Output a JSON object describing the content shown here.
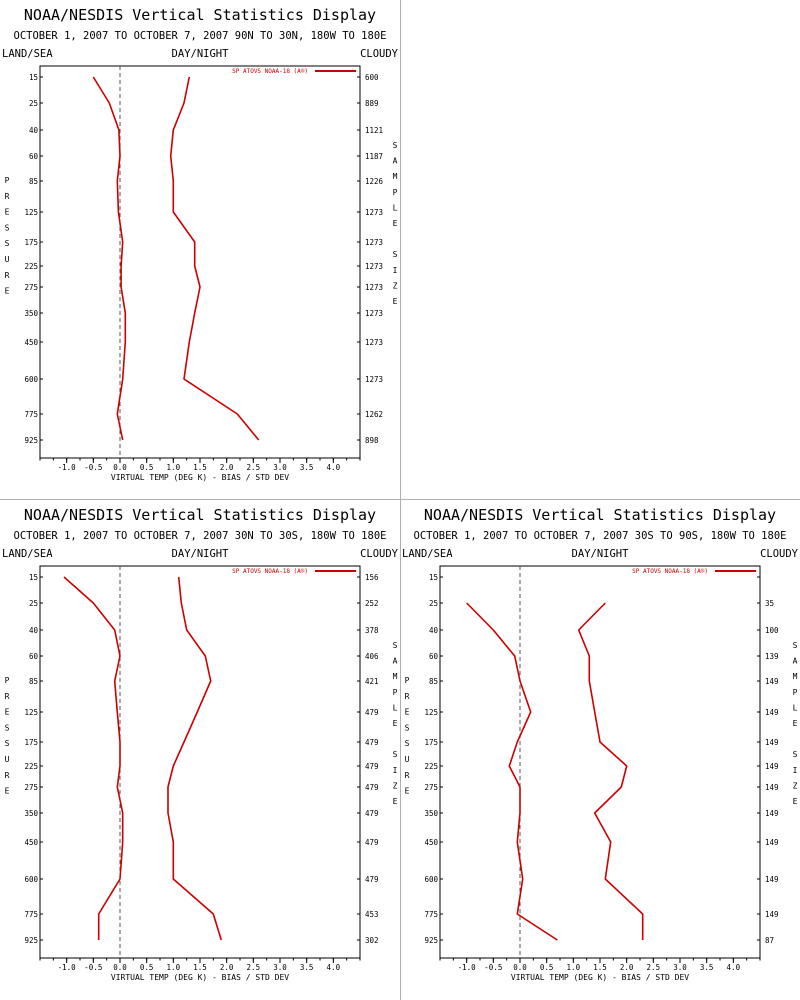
{
  "chart_data": [
    {
      "type": "line",
      "title": "NOAA/NESDIS Vertical Statistics Display",
      "subtitle": "OCTOBER 1, 2007 TO OCTOBER 7, 2007 90N TO 30N, 180W TO 180E",
      "header_left": "LAND/SEA",
      "header_center": "DAY/NIGHT",
      "header_right": "CLOUDY",
      "legend": "SP ATOVS NOAA-18 (A®)",
      "xlabel": "VIRTUAL TEMP (DEG K) - BIAS / STD DEV",
      "ylabel": "PRESSURE",
      "y2label": "SAMPLE SIZE",
      "xlim": [
        -1.5,
        4.5
      ],
      "x_ticks": [
        -1.0,
        -0.5,
        0.0,
        0.5,
        1.0,
        1.5,
        2.0,
        2.5,
        3.0,
        3.5,
        4.0
      ],
      "x_tick_labels": [
        "-1.0",
        "-0.5",
        "0.0",
        "0.5",
        "1.0",
        "1.5",
        "2.0",
        "2.5",
        "3.0",
        "3.5",
        "4.0"
      ],
      "pressure_levels": [
        "15",
        "25",
        "40",
        "60",
        "85",
        "125",
        "175",
        "225",
        "275",
        "350",
        "450",
        "600",
        "775",
        "925"
      ],
      "sample_sizes": [
        "600",
        "889",
        "1121",
        "1187",
        "1226",
        "1273",
        "1273",
        "1273",
        "1273",
        "1273",
        "1273",
        "1273",
        "1262",
        "898"
      ],
      "series": [
        {
          "role": "bias",
          "values": [
            -0.5,
            -0.2,
            -0.02,
            0.0,
            -0.05,
            -0.03,
            0.05,
            0.02,
            0.02,
            0.1,
            0.1,
            0.05,
            -0.05,
            0.05
          ]
        },
        {
          "role": "std_dev",
          "values": [
            1.3,
            1.2,
            1.0,
            0.95,
            1.0,
            1.0,
            1.4,
            1.4,
            1.5,
            1.4,
            1.3,
            1.2,
            2.2,
            2.6
          ]
        }
      ]
    },
    {
      "type": "line",
      "title": "NOAA/NESDIS Vertical Statistics Display",
      "subtitle": "OCTOBER 1, 2007 TO OCTOBER 7, 2007 30N TO 30S, 180W TO 180E",
      "header_left": "LAND/SEA",
      "header_center": "DAY/NIGHT",
      "header_right": "CLOUDY",
      "legend": "SP ATOVS NOAA-18 (A®)",
      "xlabel": "VIRTUAL TEMP (DEG K) - BIAS / STD DEV",
      "ylabel": "PRESSURE",
      "y2label": "SAMPLE SIZE",
      "xlim": [
        -1.5,
        4.5
      ],
      "x_ticks": [
        -1.0,
        -0.5,
        0.0,
        0.5,
        1.0,
        1.5,
        2.0,
        2.5,
        3.0,
        3.5,
        4.0
      ],
      "x_tick_labels": [
        "-1.0",
        "-0.5",
        "0.0",
        "0.5",
        "1.0",
        "1.5",
        "2.0",
        "2.5",
        "3.0",
        "3.5",
        "4.0"
      ],
      "pressure_levels": [
        "15",
        "25",
        "40",
        "60",
        "85",
        "125",
        "175",
        "225",
        "275",
        "350",
        "450",
        "600",
        "775",
        "925"
      ],
      "sample_sizes": [
        "156",
        "252",
        "378",
        "406",
        "421",
        "479",
        "479",
        "479",
        "479",
        "479",
        "479",
        "479",
        "453",
        "302"
      ],
      "series": [
        {
          "role": "bias",
          "values": [
            -1.05,
            -0.5,
            -0.1,
            0.0,
            -0.1,
            -0.05,
            0.0,
            0.0,
            -0.05,
            0.05,
            0.05,
            0.0,
            -0.4,
            -0.4
          ]
        },
        {
          "role": "std_dev",
          "values": [
            1.1,
            1.15,
            1.25,
            1.6,
            1.7,
            1.45,
            1.2,
            1.0,
            0.9,
            0.9,
            1.0,
            1.0,
            1.75,
            1.9
          ]
        }
      ]
    },
    {
      "type": "line",
      "title": "NOAA/NESDIS Vertical Statistics Display",
      "subtitle": "OCTOBER 1, 2007 TO OCTOBER 7, 2007 30S TO 90S, 180W TO 180E",
      "header_left": "LAND/SEA",
      "header_center": "DAY/NIGHT",
      "header_right": "CLOUDY",
      "legend": "SP ATOVS NOAA-18 (A®)",
      "xlabel": "VIRTUAL TEMP (DEG K) - BIAS / STD DEV",
      "ylabel": "PRESSURE",
      "y2label": "SAMPLE SIZE",
      "xlim": [
        -1.5,
        4.5
      ],
      "x_ticks": [
        -1.0,
        -0.5,
        0.0,
        0.5,
        1.0,
        1.5,
        2.0,
        2.5,
        3.0,
        3.5,
        4.0
      ],
      "x_tick_labels": [
        "-1.0",
        "-0.5",
        "0.0",
        "0.5",
        "1.0",
        "1.5",
        "2.0",
        "2.5",
        "3.0",
        "3.5",
        "4.0"
      ],
      "pressure_levels": [
        "15",
        "25",
        "40",
        "60",
        "85",
        "125",
        "175",
        "225",
        "275",
        "350",
        "450",
        "600",
        "775",
        "925"
      ],
      "sample_sizes": [
        "",
        "35",
        "100",
        "139",
        "149",
        "149",
        "149",
        "149",
        "149",
        "149",
        "149",
        "149",
        "149",
        "87"
      ],
      "series": [
        {
          "role": "bias",
          "values": [
            null,
            -1.0,
            -0.5,
            -0.1,
            0.0,
            0.2,
            -0.05,
            -0.2,
            0.0,
            0.0,
            -0.05,
            0.05,
            -0.05,
            0.7
          ]
        },
        {
          "role": "std_dev",
          "values": [
            null,
            1.6,
            1.1,
            1.3,
            1.3,
            1.4,
            1.5,
            2.0,
            1.9,
            1.4,
            1.7,
            1.6,
            2.3,
            2.3
          ]
        }
      ]
    }
  ],
  "colors": {
    "series": "#cc0000",
    "text": "#000000",
    "axis": "#000000",
    "zero_line": "#555555",
    "divider": "#b0b0b0"
  }
}
